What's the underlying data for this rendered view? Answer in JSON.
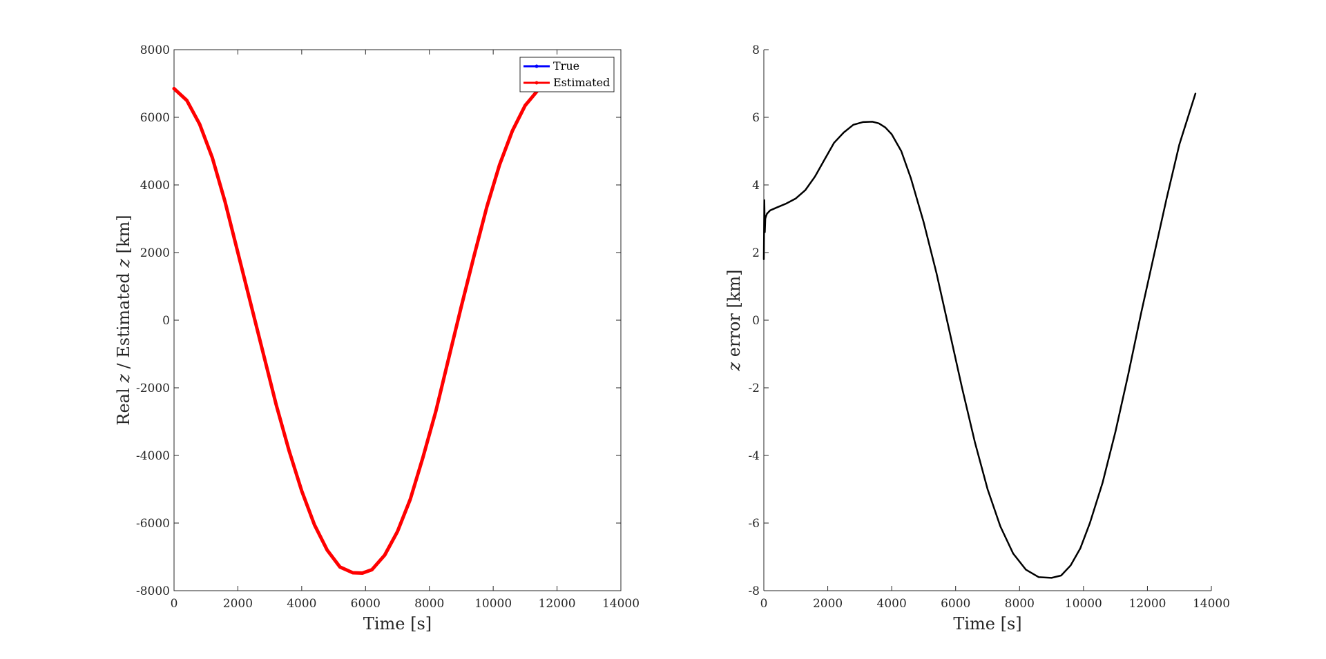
{
  "chart_data": [
    {
      "type": "line",
      "title": "",
      "xlabel": "Time [s]",
      "ylabel_parts": [
        "Real ",
        "z",
        " / Estimated ",
        "z",
        " [km]"
      ],
      "xlim": [
        0,
        14000
      ],
      "ylim": [
        -8000,
        8000
      ],
      "xticks": [
        0,
        2000,
        4000,
        6000,
        8000,
        10000,
        12000,
        14000
      ],
      "yticks": [
        -8000,
        -6000,
        -4000,
        -2000,
        0,
        2000,
        4000,
        6000,
        8000
      ],
      "grid": false,
      "legend_position": "top-right",
      "series": [
        {
          "name": "True",
          "color": "#0000ff",
          "x": [
            0,
            400,
            800,
            1200,
            1600,
            2000,
            2400,
            2800,
            3200,
            3600,
            4000,
            4400,
            4800,
            5200,
            5600,
            5900,
            6200,
            6600,
            7000,
            7400,
            7800,
            8200,
            8600,
            9000,
            9400,
            9800,
            10200,
            10600,
            11000,
            11400,
            11600
          ],
          "y": [
            6850,
            6500,
            5800,
            4800,
            3500,
            2000,
            500,
            -1000,
            -2500,
            -3850,
            -5050,
            -6050,
            -6800,
            -7300,
            -7470,
            -7480,
            -7380,
            -6950,
            -6250,
            -5300,
            -4050,
            -2700,
            -1150,
            400,
            1900,
            3350,
            4600,
            5600,
            6350,
            6800,
            7000
          ]
        },
        {
          "name": "Estimated",
          "color": "#ff0000",
          "x": [
            0,
            400,
            800,
            1200,
            1600,
            2000,
            2400,
            2800,
            3200,
            3600,
            4000,
            4400,
            4800,
            5200,
            5600,
            5900,
            6200,
            6600,
            7000,
            7400,
            7800,
            8200,
            8600,
            9000,
            9400,
            9800,
            10200,
            10600,
            11000,
            11400,
            11600
          ],
          "y": [
            6850,
            6500,
            5800,
            4800,
            3500,
            2000,
            500,
            -1000,
            -2500,
            -3850,
            -5050,
            -6050,
            -6800,
            -7300,
            -7470,
            -7480,
            -7380,
            -6950,
            -6250,
            -5300,
            -4050,
            -2700,
            -1150,
            400,
            1900,
            3350,
            4600,
            5600,
            6350,
            6800,
            7000
          ]
        }
      ]
    },
    {
      "type": "line",
      "title": "",
      "xlabel": "Time [s]",
      "ylabel_parts": [
        "z",
        " error [km]"
      ],
      "xlim": [
        0,
        14000
      ],
      "ylim": [
        -8,
        8
      ],
      "xticks": [
        0,
        2000,
        4000,
        6000,
        8000,
        10000,
        12000,
        14000
      ],
      "yticks": [
        -8,
        -6,
        -4,
        -2,
        0,
        2,
        4,
        6,
        8
      ],
      "grid": false,
      "series": [
        {
          "color": "#000000",
          "x": [
            0,
            15,
            30,
            45,
            60,
            100,
            200,
            400,
            700,
            1000,
            1300,
            1600,
            1900,
            2200,
            2500,
            2800,
            3100,
            3400,
            3600,
            3800,
            4000,
            4300,
            4600,
            5000,
            5400,
            5800,
            6200,
            6600,
            7000,
            7400,
            7800,
            8200,
            8600,
            9000,
            9300,
            9600,
            9900,
            10200,
            10600,
            11000,
            11400,
            11800,
            12200,
            12600,
            13000,
            13500
          ],
          "y": [
            1.8,
            3.55,
            2.6,
            3.0,
            3.05,
            3.15,
            3.25,
            3.33,
            3.45,
            3.6,
            3.85,
            4.25,
            4.75,
            5.25,
            5.55,
            5.78,
            5.86,
            5.87,
            5.82,
            5.7,
            5.5,
            5.0,
            4.2,
            2.9,
            1.4,
            -0.3,
            -2.0,
            -3.6,
            -5.0,
            -6.1,
            -6.9,
            -7.38,
            -7.6,
            -7.62,
            -7.55,
            -7.25,
            -6.75,
            -6.0,
            -4.8,
            -3.3,
            -1.6,
            0.2,
            1.9,
            3.6,
            5.2,
            6.7
          ]
        }
      ]
    }
  ]
}
